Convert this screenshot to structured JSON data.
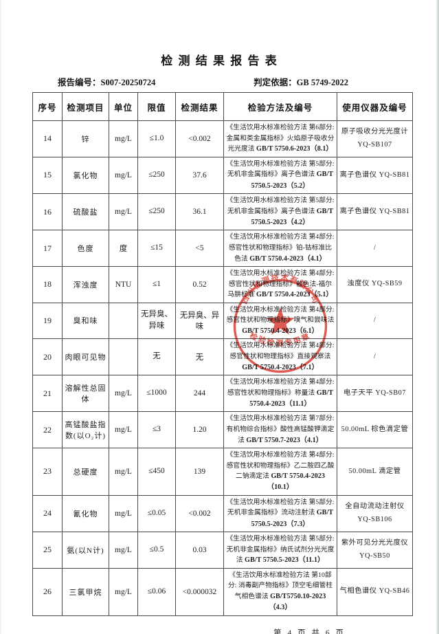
{
  "page": {
    "title": "检 测 结 果 报 告 表",
    "report_no_label": "报告编号：",
    "report_no": "S007-20250724",
    "basis_label": "判定依据：",
    "basis": "GB 5749-2022",
    "footer": "第 4 页 共 6 页"
  },
  "table": {
    "headers": [
      "序号",
      "检测项目",
      "单位",
      "限值",
      "检测结果",
      "检验方法及编号",
      "使用仪器及编号"
    ],
    "rows": [
      {
        "no": "14",
        "item": "锌",
        "unit": "mg/L",
        "limit": "≤1.0",
        "result": "<0.002",
        "method": "《生活饮用水标准检验方法 第6部分: 金属和类金属指标》火焰原子吸收分光光度法 GB/T 5750.6-2023（8.1）",
        "instrument": "原子吸收分光光度计 YQ-SB107"
      },
      {
        "no": "15",
        "item": "氯化物",
        "unit": "mg/L",
        "limit": "≤250",
        "result": "37.6",
        "method": "《生活饮用水标准检验方法 第5部分: 无机非金属指标》离子色谱法 GB/T 5750.5-2023（5.2）",
        "instrument": "离子色谱仪 YQ-SB81"
      },
      {
        "no": "16",
        "item": "硫酸盐",
        "unit": "mg/L",
        "limit": "≤250",
        "result": "36.1",
        "method": "《生活饮用水标准检验方法 第5部分: 无机非金属指标》离子色谱法 GB/T 5750.5-2023（4.2）",
        "instrument": "离子色谱仪 YQ-SB81"
      },
      {
        "no": "17",
        "item": "色度",
        "unit": "度",
        "limit": "≤15",
        "result": "<5",
        "method": "《生活饮用水标准检验方法 第4部分: 感官性状和物理指标》铂-钴标准比色法 GB/T 5750.4-2023（4.1）",
        "instrument": "/"
      },
      {
        "no": "18",
        "item": "浑浊度",
        "unit": "NTU",
        "limit": "≤1",
        "result": "0.52",
        "method": "《生活饮用水标准检验方法 第4部分: 感官性状和物理指标》散色法-福尔马肼标准 GB/T 5750.4-2023（5.1）",
        "instrument": "浊度仪 YQ-SB59"
      },
      {
        "no": "19",
        "item": "臭和味",
        "unit": "",
        "limit": "无异臭、异味",
        "result": "无异臭、异味",
        "method": "《生活饮用水标准检验方法 第4部分: 感官性状和物理指标》嗅气和尝味法 GB/T 5750.4-2023（6.1）",
        "instrument": "/"
      },
      {
        "no": "20",
        "item": "肉眼可见物",
        "unit": "",
        "limit": "无",
        "result": "无",
        "method": "《生活饮用水标准检验方法 第4部分: 感官性状和物理指标》直接观察法 GB/T 5750.4-2023（7.1）",
        "instrument": "/"
      },
      {
        "no": "21",
        "item": "溶解性总固体",
        "unit": "mg/L",
        "limit": "≤1000",
        "result": "244",
        "method": "《生活饮用水标准检验方法 第4部分: 感官性状和物理指标》称量法 GB/T 5750.4-2023（11.1）",
        "instrument": "电子天平 YQ-SB07"
      },
      {
        "no": "22",
        "item": "高锰酸盐指数(以O₂计)",
        "unit": "mg/L",
        "limit": "≤3",
        "result": "1.20",
        "method": "《生活饮用水标准检验方法 第7部分: 有机物综合指标》酸性高锰酸钾滴定法 GB/T 5750.7-2023（4.1）",
        "instrument": "50.00mL 棕色滴定管"
      },
      {
        "no": "23",
        "item": "总硬度",
        "unit": "mg/L",
        "limit": "≤450",
        "result": "139",
        "method": "《生活饮用水标准检验方法 第4部分: 感官性状和物理指标》乙二胺四乙酸二钠滴定法 GB/T 5750.4-2023（10.1）",
        "instrument": "50.00mL 滴定管"
      },
      {
        "no": "24",
        "item": "氰化物",
        "unit": "mg/L",
        "limit": "≤0.05",
        "result": "<0.002",
        "method": "《生活饮用水标准检验方法 第5部分: 无机非金属指标》流动注射法 GB/T 5750.5-2023（7.3）",
        "instrument": "全自动流动注射仪 YQ-SB106"
      },
      {
        "no": "25",
        "item": "氨(以N计)",
        "unit": "mg/L",
        "limit": "≤0.5",
        "result": "0.03",
        "method": "《生活饮用水标准检验方法 第5部分: 无机非金属指标》纳氏试剂分光光度法 GB/T 5750.5-2023（11.1）",
        "instrument": "紫外可见分光光度仪 YQ-SB50"
      },
      {
        "no": "26",
        "item": "三氯甲烷",
        "unit": "mg/L",
        "limit": "≤0.06",
        "result": "<0.000032",
        "method": "《生活饮用水标准检验方法 第10部分: 消毒副产物指标》顶空毛细管柱气相色谱法 GB/T5750.10-2023（4.3）",
        "instrument": "气相色谱仪 YQ-SB46"
      }
    ]
  },
  "stamp": {
    "arc_text": "四川检测技术有限公司",
    "bottom_text": "检验检测专用章",
    "color": "#d6372c"
  }
}
